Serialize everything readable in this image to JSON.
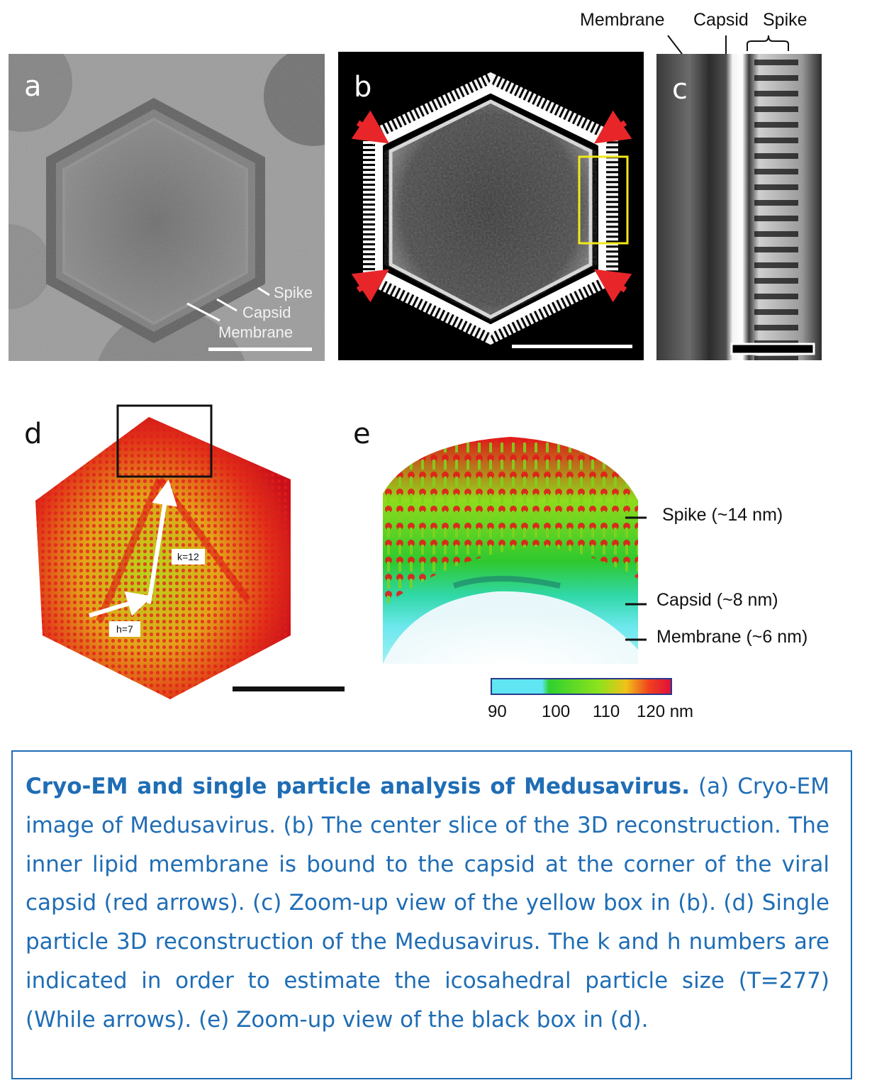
{
  "figure": {
    "panel_a": {
      "label": "a",
      "annotations": [
        "Spike",
        "Capsid",
        "Membrane"
      ]
    },
    "panel_b": {
      "label": "b"
    },
    "panel_c": {
      "label": "c",
      "header_labels": [
        "Membrane",
        "Capsid",
        "Spike"
      ]
    },
    "panel_d": {
      "label": "d",
      "arrow_labels": {
        "k": "k=12",
        "h": "h=7"
      }
    },
    "panel_e": {
      "label": "e",
      "annotations": [
        "Spike (~14 nm)",
        "Capsid (~8 nm)",
        "Membrane (~6 nm)"
      ],
      "colorbar": {
        "ticks": [
          "90",
          "100",
          "110",
          "120 nm"
        ],
        "colors": [
          "#5fe6f2",
          "#2fd12f",
          "#8ee21c",
          "#f0c21a",
          "#f0401e",
          "#e0103a"
        ]
      }
    }
  },
  "caption": {
    "title": "Cryo-EM and single particle analysis of Medusavirus.",
    "body": " (a) Cryo-EM image of Medusavirus.  (b) The center slice of the 3D reconstruction. The inner lipid membrane is bound to the capsid at the corner of the viral capsid (red arrows). (c) Zoom-up view of the yellow box in (b). (d) Single particle 3D reconstruction of the Medusavirus. The k and h numbers are indicated in order to estimate the icosahedral particle size (T=277) (While arrows). (e) Zoom-up view  of the black box in (d)."
  },
  "colors": {
    "caption_blue": "#1f6db5",
    "arrow_red": "#e8262a",
    "box_yellow": "#f3e81b"
  }
}
